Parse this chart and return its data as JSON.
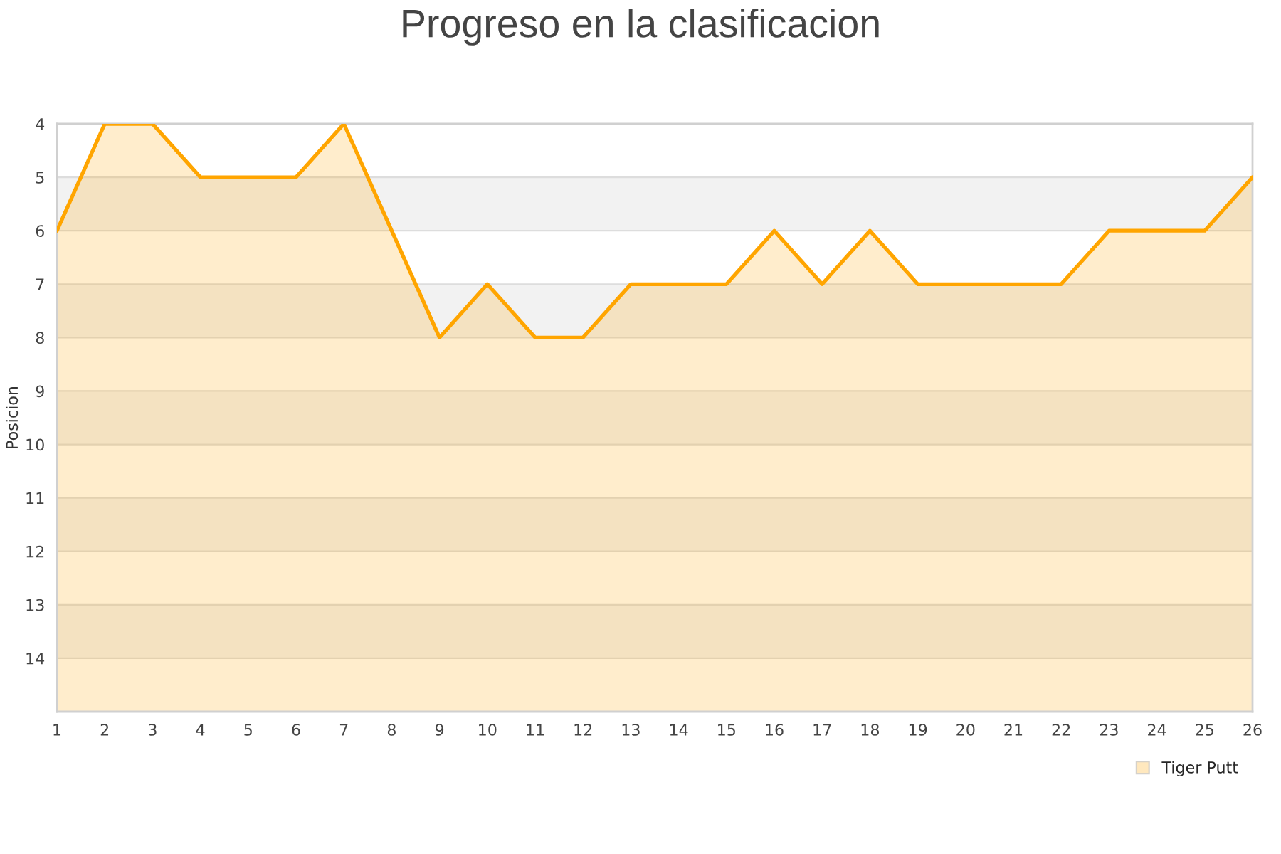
{
  "chart_data": {
    "type": "line",
    "title": "Progreso en la clasificacion",
    "ylabel": "Posicion",
    "x": [
      1,
      2,
      3,
      4,
      5,
      6,
      7,
      8,
      9,
      10,
      11,
      12,
      13,
      14,
      15,
      16,
      17,
      18,
      19,
      20,
      21,
      22,
      23,
      24,
      25,
      26
    ],
    "series": [
      {
        "name": "Tiger Putt",
        "color": "#ffa500",
        "values": [
          6,
          4,
          4,
          5,
          5,
          5,
          4,
          6,
          8,
          7,
          8,
          8,
          7,
          7,
          7,
          6,
          7,
          6,
          7,
          7,
          7,
          7,
          6,
          6,
          6,
          5
        ],
        "lower": [
          6,
          4,
          4,
          5,
          5,
          5,
          4,
          6,
          8,
          7,
          8,
          8,
          7,
          7,
          7,
          6,
          7,
          6,
          7,
          7,
          7,
          7,
          6,
          6,
          6,
          5
        ],
        "upper": [
          15,
          15,
          15,
          15,
          15,
          15,
          15,
          15,
          15,
          15,
          15,
          15,
          15,
          15,
          15,
          15,
          15,
          15,
          15,
          15,
          15,
          15,
          15,
          15,
          15,
          15
        ]
      }
    ],
    "xlim": [
      1,
      26
    ],
    "xticks": [
      1,
      2,
      3,
      4,
      5,
      6,
      7,
      8,
      9,
      10,
      11,
      12,
      13,
      14,
      15,
      16,
      17,
      18,
      19,
      20,
      21,
      22,
      23,
      24,
      25,
      26
    ],
    "ylim": [
      15,
      4
    ],
    "yticks": [
      4,
      5,
      6,
      7,
      8,
      9,
      10,
      11,
      12,
      13,
      14
    ],
    "grid": "y",
    "legend": "bottom right",
    "marker": "none",
    "line_style": "solid"
  }
}
